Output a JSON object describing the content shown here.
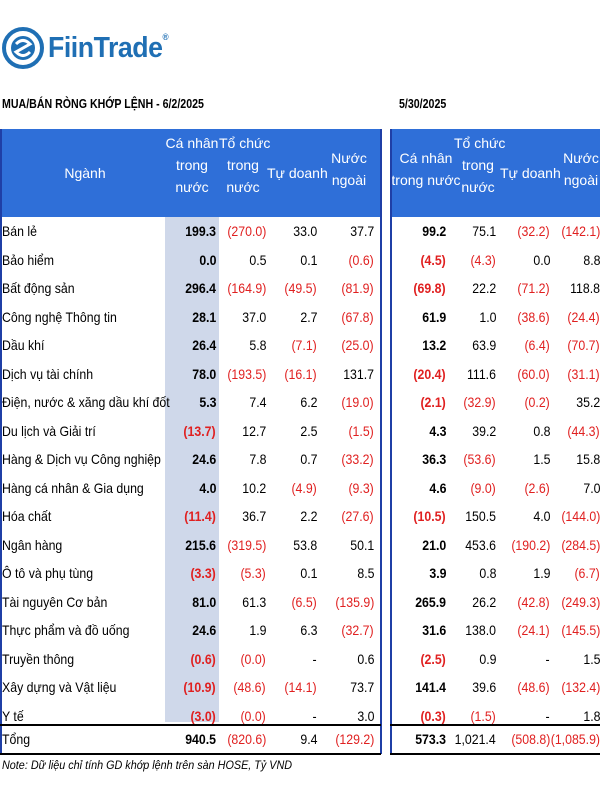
{
  "logo": {
    "text": "FiinTrade",
    "reg": "®"
  },
  "left_title": "MUA/BÁN RÒNG KHỚP LỆNH - 6/2/2025",
  "right_title": "5/30/2025",
  "headers_left": [
    {
      "lines": [
        "Ngành"
      ]
    },
    {
      "lines": [
        "Cá nhân",
        "trong",
        "nước"
      ]
    },
    {
      "lines": [
        "Tổ chức",
        "trong",
        "nước"
      ]
    },
    {
      "lines": [
        "Tự doanh"
      ]
    },
    {
      "lines": [
        "Nước",
        "ngoài"
      ]
    }
  ],
  "headers_right": [
    {
      "lines": [
        "Cá nhân",
        "trong nước"
      ]
    },
    {
      "lines": [
        "Tổ chức",
        "trong",
        "nước"
      ]
    },
    {
      "lines": [
        "Tự doanh"
      ]
    },
    {
      "lines": [
        "Nước",
        "ngoài"
      ]
    }
  ],
  "rows": [
    {
      "name": "Bán lẻ",
      "l": [
        "199.3",
        "(270.0)",
        "33.0",
        "37.7"
      ],
      "r": [
        "99.2",
        "75.1",
        "(32.2)",
        "(142.1)"
      ]
    },
    {
      "name": "Bảo hiểm",
      "l": [
        "0.0",
        "0.5",
        "0.1",
        "(0.6)"
      ],
      "r": [
        "(4.5)",
        "(4.3)",
        "0.0",
        "8.8"
      ]
    },
    {
      "name": "Bất động sản",
      "l": [
        "296.4",
        "(164.9)",
        "(49.5)",
        "(81.9)"
      ],
      "r": [
        "(69.8)",
        "22.2",
        "(71.2)",
        "118.8"
      ]
    },
    {
      "name": "Công nghệ Thông tin",
      "l": [
        "28.1",
        "37.0",
        "2.7",
        "(67.8)"
      ],
      "r": [
        "61.9",
        "1.0",
        "(38.6)",
        "(24.4)"
      ]
    },
    {
      "name": "Dầu khí",
      "l": [
        "26.4",
        "5.8",
        "(7.1)",
        "(25.0)"
      ],
      "r": [
        "13.2",
        "63.9",
        "(6.4)",
        "(70.7)"
      ]
    },
    {
      "name": "Dịch vụ tài chính",
      "l": [
        "78.0",
        "(193.5)",
        "(16.1)",
        "131.7"
      ],
      "r": [
        "(20.4)",
        "111.6",
        "(60.0)",
        "(31.1)"
      ]
    },
    {
      "name": "Điện, nước & xăng dầu khí đốt",
      "l": [
        "5.3",
        "7.4",
        "6.2",
        "(19.0)"
      ],
      "r": [
        "(2.1)",
        "(32.9)",
        "(0.2)",
        "35.2"
      ]
    },
    {
      "name": "Du lịch và Giải trí",
      "l": [
        "(13.7)",
        "12.7",
        "2.5",
        "(1.5)"
      ],
      "r": [
        "4.3",
        "39.2",
        "0.8",
        "(44.3)"
      ]
    },
    {
      "name": "Hàng & Dịch vụ Công nghiệp",
      "l": [
        "24.6",
        "7.8",
        "0.7",
        "(33.2)"
      ],
      "r": [
        "36.3",
        "(53.6)",
        "1.5",
        "15.8"
      ]
    },
    {
      "name": "Hàng cá nhân & Gia dụng",
      "l": [
        "4.0",
        "10.2",
        "(4.9)",
        "(9.3)"
      ],
      "r": [
        "4.6",
        "(9.0)",
        "(2.6)",
        "7.0"
      ]
    },
    {
      "name": "Hóa chất",
      "l": [
        "(11.4)",
        "36.7",
        "2.2",
        "(27.6)"
      ],
      "r": [
        "(10.5)",
        "150.5",
        "4.0",
        "(144.0)"
      ]
    },
    {
      "name": "Ngân hàng",
      "l": [
        "215.6",
        "(319.5)",
        "53.8",
        "50.1"
      ],
      "r": [
        "21.0",
        "453.6",
        "(190.2)",
        "(284.5)"
      ]
    },
    {
      "name": "Ô tô và phụ tùng",
      "l": [
        "(3.3)",
        "(5.3)",
        "0.1",
        "8.5"
      ],
      "r": [
        "3.9",
        "0.8",
        "1.9",
        "(6.7)"
      ]
    },
    {
      "name": "Tài nguyên Cơ bản",
      "l": [
        "81.0",
        "61.3",
        "(6.5)",
        "(135.9)"
      ],
      "r": [
        "265.9",
        "26.2",
        "(42.8)",
        "(249.3)"
      ]
    },
    {
      "name": "Thực phẩm và đồ uống",
      "l": [
        "24.6",
        "1.9",
        "6.3",
        "(32.7)"
      ],
      "r": [
        "31.6",
        "138.0",
        "(24.1)",
        "(145.5)"
      ]
    },
    {
      "name": "Truyền thông",
      "l": [
        "(0.6)",
        "(0.0)",
        "-",
        "0.6"
      ],
      "r": [
        "(2.5)",
        "0.9",
        "-",
        "1.5"
      ]
    },
    {
      "name": "Xây dựng và Vật liệu",
      "l": [
        "(10.9)",
        "(48.6)",
        "(14.1)",
        "73.7"
      ],
      "r": [
        "141.4",
        "39.6",
        "(48.6)",
        "(132.4)"
      ]
    },
    {
      "name": "Y tế",
      "l": [
        "(3.0)",
        "(0.0)",
        "-",
        "3.0"
      ],
      "r": [
        "(0.3)",
        "(1.5)",
        "-",
        "1.8"
      ]
    }
  ],
  "total": {
    "name": "Tổng",
    "l": [
      "940.5",
      "(820.6)",
      "9.4",
      "(129.2)"
    ],
    "r": [
      "573.3",
      "1,021.4",
      "(508.8)",
      "(1,085.9)"
    ]
  },
  "note": "Note: Dữ liệu chỉ tính GD khớp lệnh trên sàn HOSE, Tỷ VND"
}
